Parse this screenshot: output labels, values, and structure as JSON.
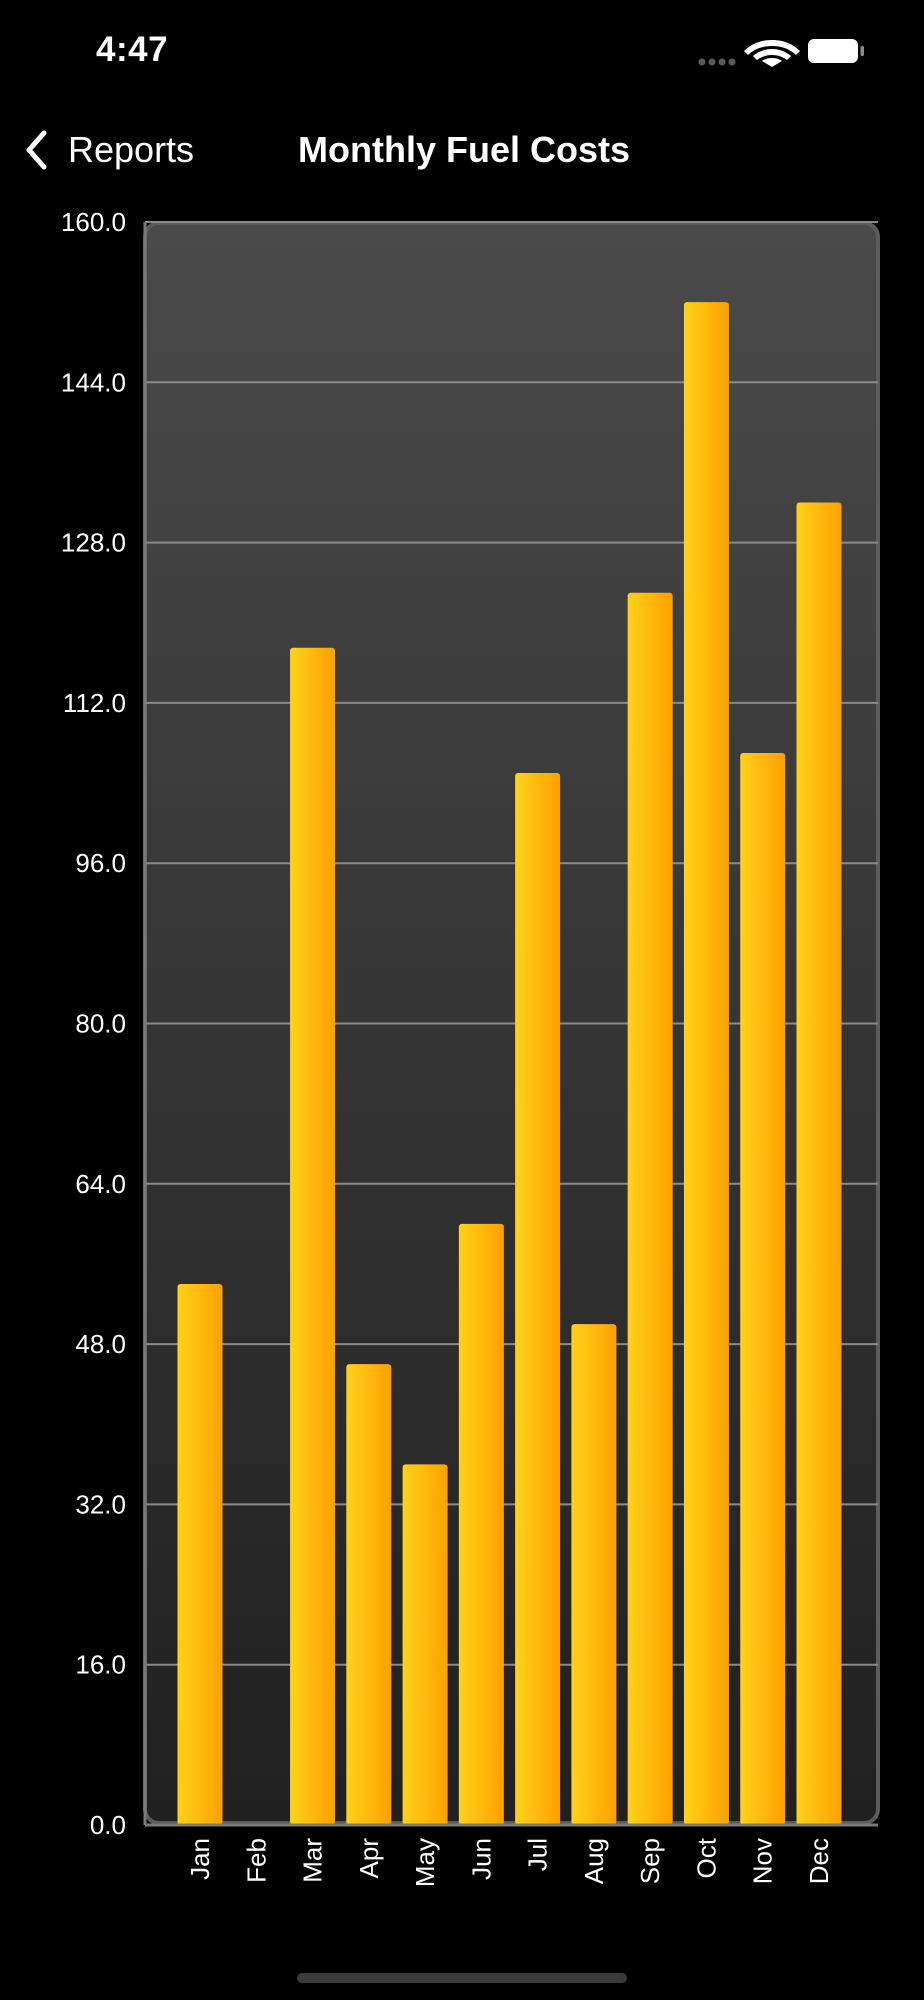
{
  "status_bar": {
    "time": "4:47"
  },
  "nav": {
    "back_label": "Reports",
    "title": "Monthly Fuel Costs"
  },
  "colors": {
    "background": "#000000",
    "plot_top": "#4a4a4a",
    "plot_bottom": "#202020",
    "bar_light": "#ffd21a",
    "bar_dark": "#ffa000",
    "gridline": "#8a8a8a",
    "axis": "#7a7a7a",
    "text": "#ffffff"
  },
  "icons": {
    "back": "chevron-left-icon",
    "signal": "cellular-signal-icon",
    "wifi": "wifi-icon",
    "battery": "battery-icon"
  },
  "chart_data": {
    "type": "bar",
    "categories": [
      "Jan",
      "Feb",
      "Mar",
      "Apr",
      "May",
      "Jun",
      "Jul",
      "Aug",
      "Sep",
      "Oct",
      "Nov",
      "Dec"
    ],
    "values": [
      54.0,
      0.0,
      117.5,
      46.0,
      36.0,
      60.0,
      105.0,
      50.0,
      123.0,
      152.0,
      107.0,
      132.0
    ],
    "ylim": [
      0,
      160
    ],
    "yticks": [
      "0.0",
      "16.0",
      "32.0",
      "48.0",
      "64.0",
      "80.0",
      "96.0",
      "112.0",
      "128.0",
      "144.0",
      "160.0"
    ],
    "title": "",
    "xlabel": "",
    "ylabel": "",
    "grid": true,
    "x_tick_rotation": "vertical"
  }
}
